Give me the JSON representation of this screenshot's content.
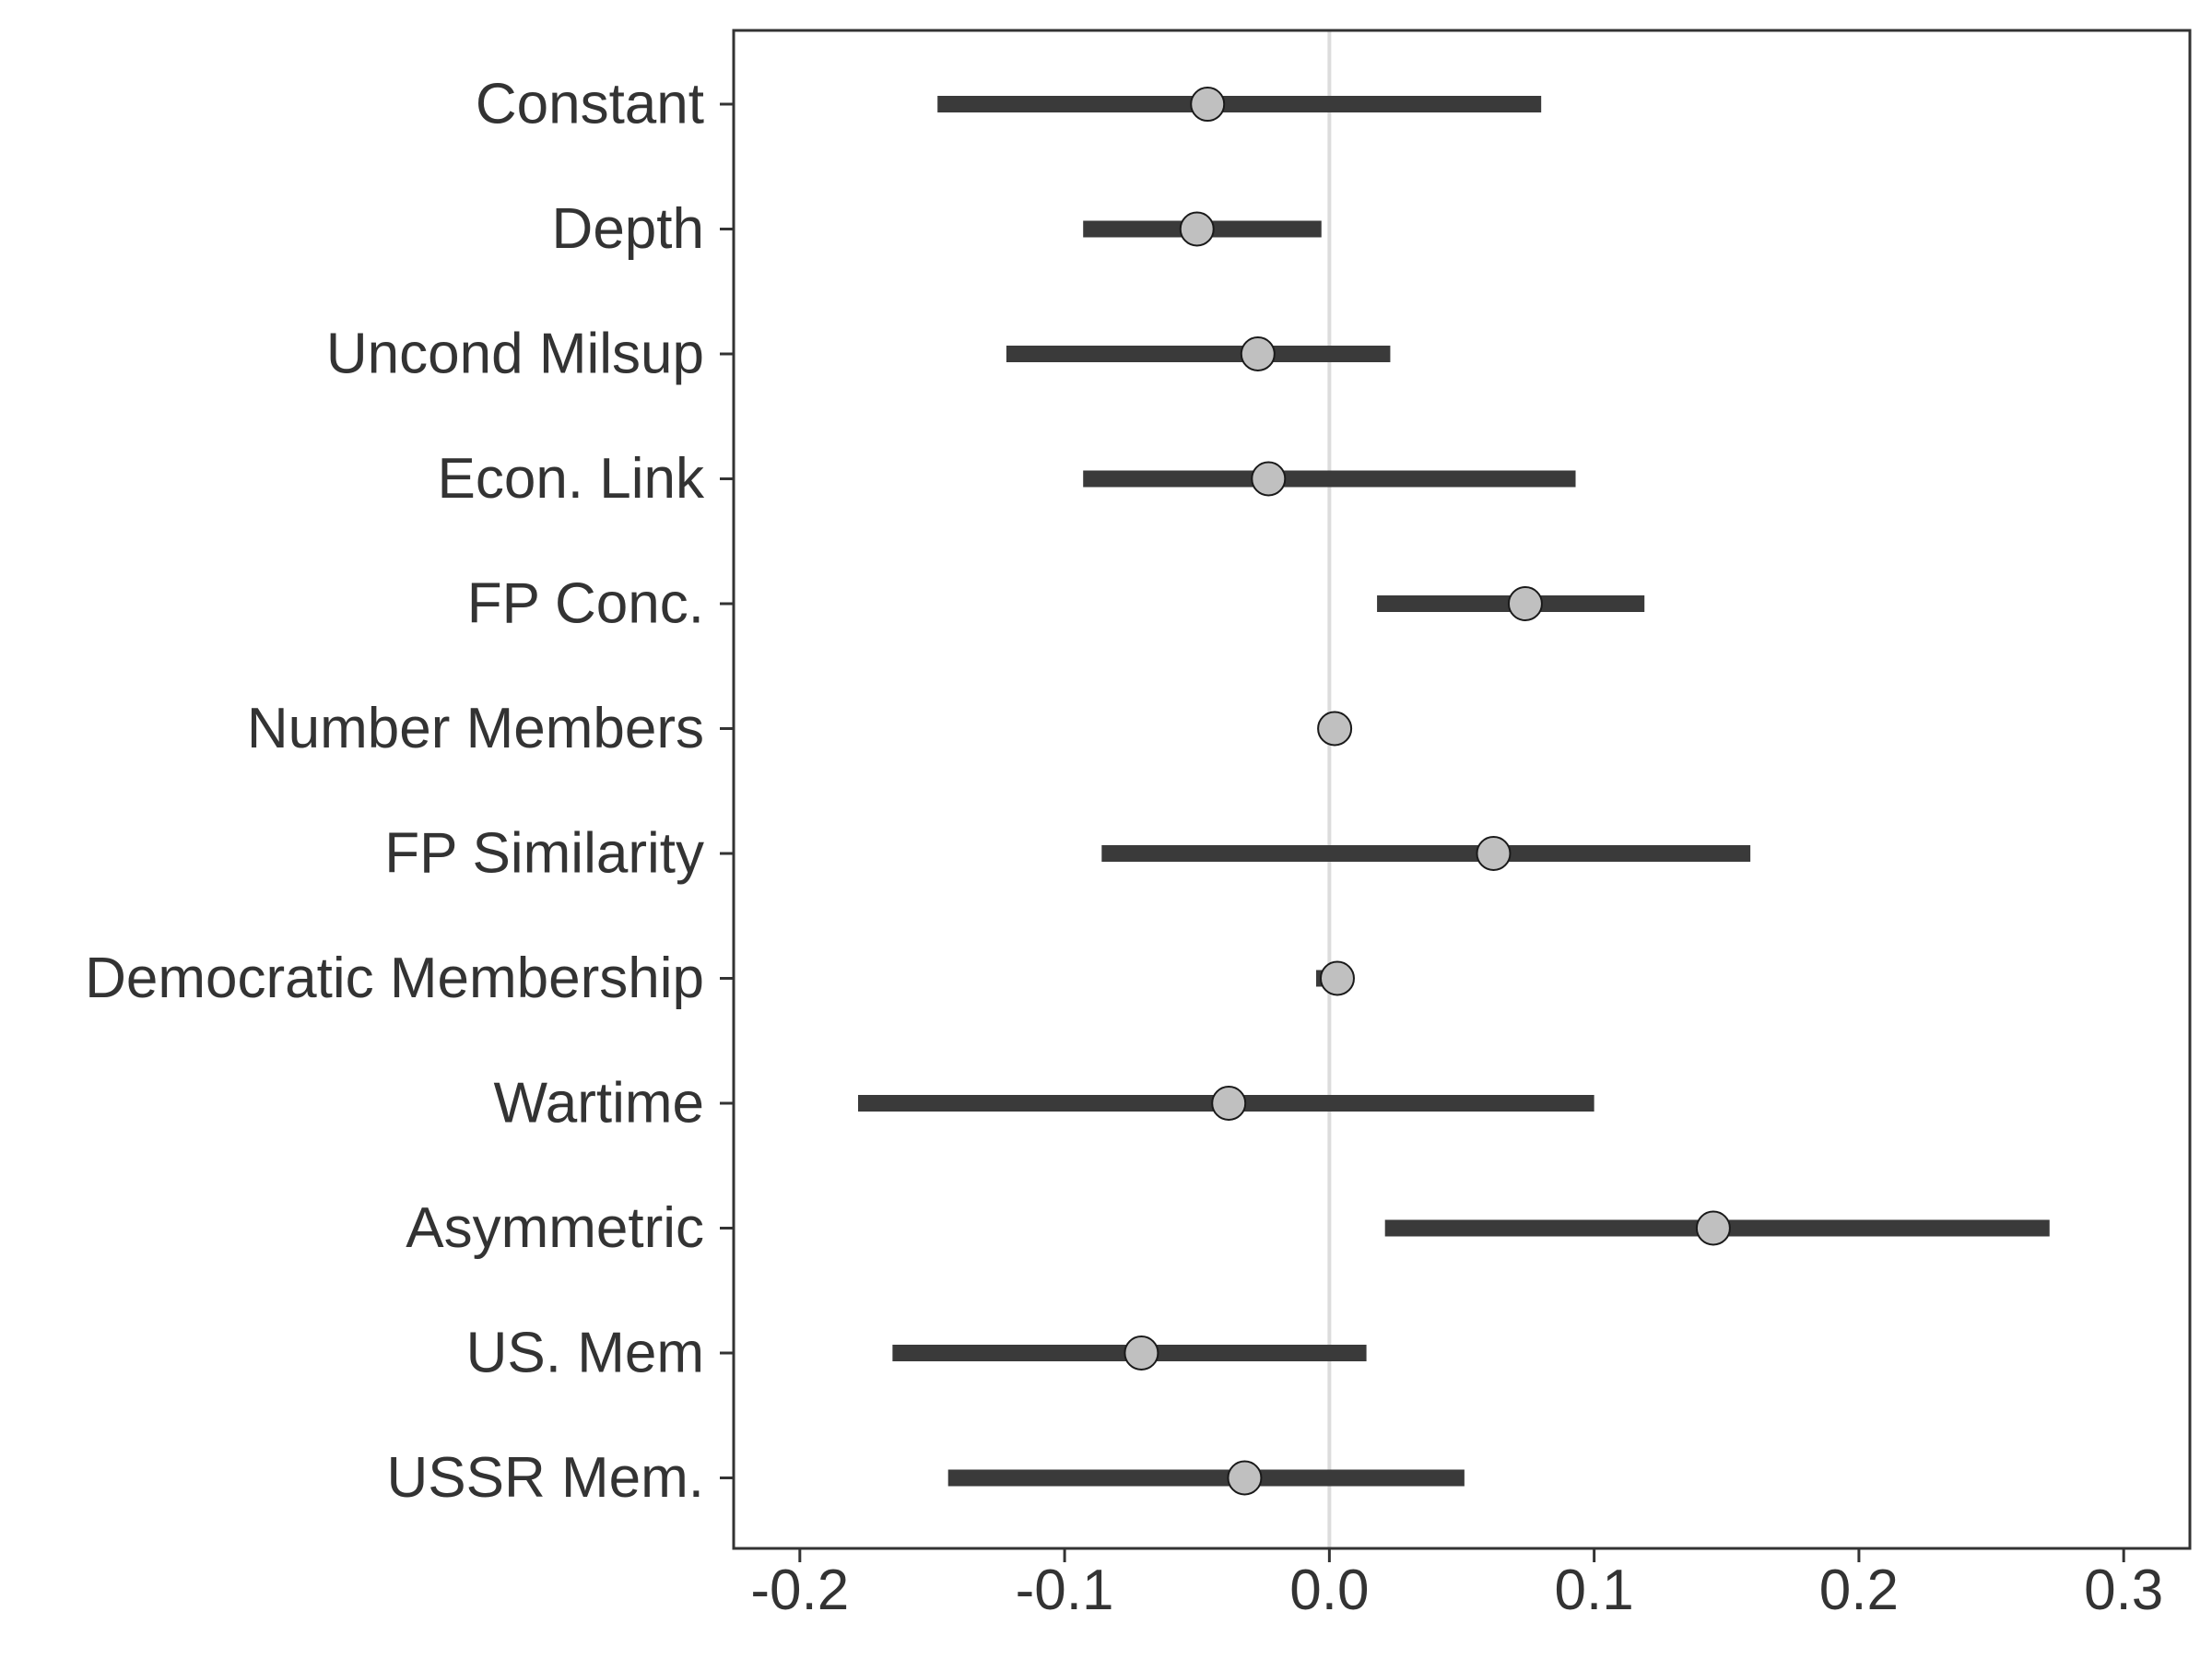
{
  "chart_data": {
    "type": "dot-whisker",
    "title": "",
    "xlabel": "",
    "ylabel": "",
    "xlim": [
      -0.225,
      0.325
    ],
    "xticks": [
      -0.2,
      -0.1,
      0.0,
      0.1,
      0.2,
      0.3
    ],
    "xtick_labels": [
      "-0.2",
      "-0.1",
      "0.0",
      "0.1",
      "0.2",
      "0.3"
    ],
    "reference_line": 0.0,
    "grid": false,
    "legend": "none",
    "colors": {
      "interval": "#3a3a3a",
      "point_fill": "#c0c0c0",
      "point_stroke": "#1a1a1a",
      "reference": "#dcdcdc",
      "axis": "#333333"
    },
    "categories": [
      "Constant",
      "Depth",
      "Uncond Milsup",
      "Econ. Link",
      "FP Conc.",
      "Number Members",
      "FP Similarity",
      "Democratic Membership",
      "Wartime",
      "Asymmetric",
      "US. Mem",
      "USSR Mem."
    ],
    "estimates": [
      -0.046,
      -0.05,
      -0.027,
      -0.023,
      0.074,
      0.002,
      0.062,
      0.003,
      -0.038,
      0.145,
      -0.071,
      -0.032
    ],
    "lower": [
      -0.148,
      -0.093,
      -0.122,
      -0.093,
      0.018,
      0.0,
      -0.086,
      -0.005,
      -0.178,
      0.021,
      -0.165,
      -0.144
    ],
    "upper": [
      0.08,
      -0.003,
      0.023,
      0.093,
      0.119,
      0.004,
      0.159,
      0.003,
      0.1,
      0.272,
      0.014,
      0.051
    ]
  }
}
